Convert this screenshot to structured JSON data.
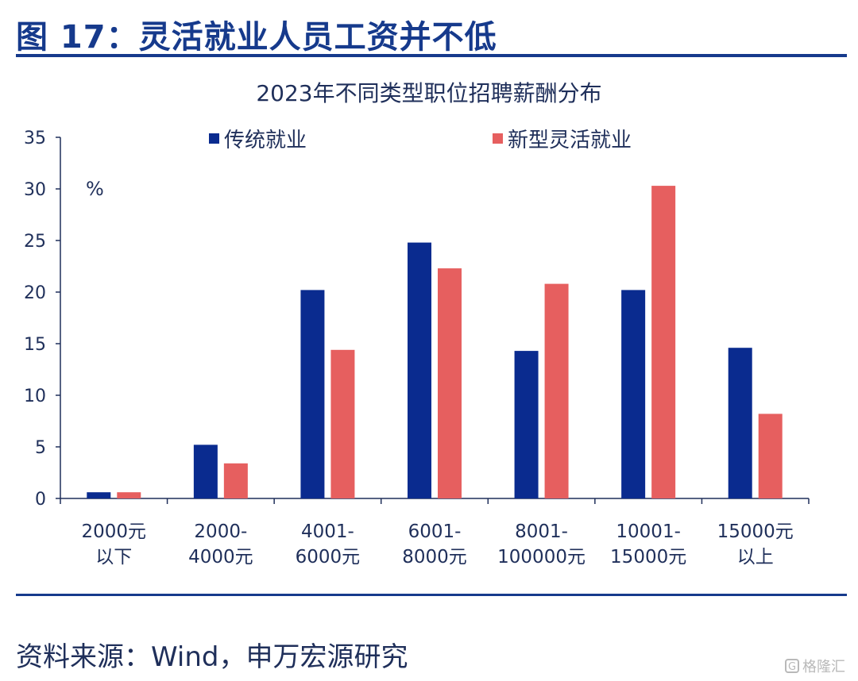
{
  "header": {
    "figure_title": "图 17：灵活就业人员工资并不低"
  },
  "chart_data": {
    "type": "bar",
    "title": "2023年不同类型职位招聘薪酬分布",
    "unit_label": "%",
    "categories": [
      [
        "2000元",
        "以下"
      ],
      [
        "2000-",
        "4000元"
      ],
      [
        "4001-",
        "6000元"
      ],
      [
        "6001-",
        "8000元"
      ],
      [
        "8001-",
        "100000元"
      ],
      [
        "10001-",
        "15000元"
      ],
      [
        "15000元",
        "以上"
      ]
    ],
    "series": [
      {
        "name": "传统就业",
        "color": "#0a2b8f",
        "values": [
          0.6,
          5.2,
          20.2,
          24.8,
          14.3,
          20.2,
          14.6
        ]
      },
      {
        "name": "新型灵活就业",
        "color": "#e65f5f",
        "values": [
          0.6,
          3.4,
          14.4,
          22.3,
          20.8,
          30.3,
          8.2
        ]
      }
    ],
    "ylim": [
      0,
      35
    ],
    "yticks": [
      0,
      5,
      10,
      15,
      20,
      25,
      30,
      35
    ],
    "grid": false,
    "legend_position": "top"
  },
  "footer": {
    "source": "资料来源：Wind，申万宏源研究",
    "watermark": "格隆汇",
    "watermark_icon": "G"
  }
}
